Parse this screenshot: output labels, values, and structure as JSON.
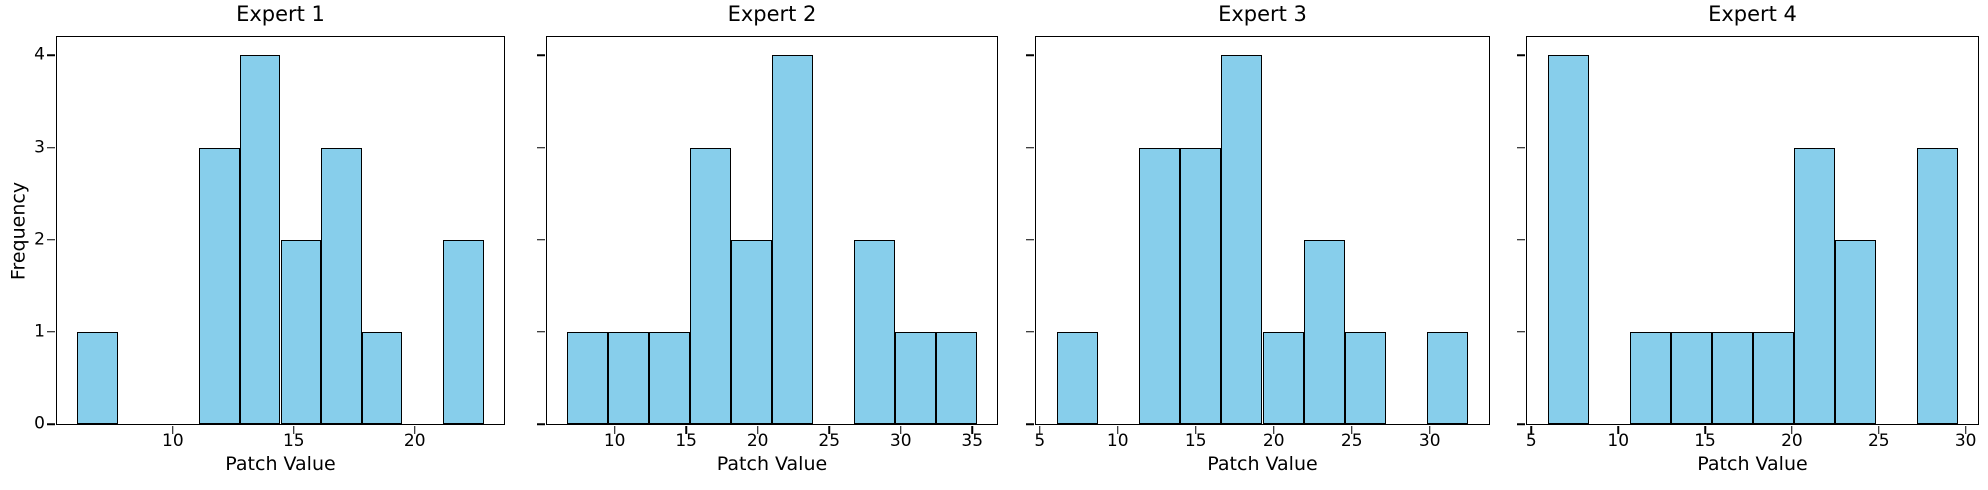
{
  "figure": {
    "background": "#ffffff",
    "bar_fill": "#87CEEB",
    "bar_edge": "#000000",
    "axis_color": "#000000",
    "frequency_axis_label": "Frequency",
    "value_axis_label": "Patch Value"
  },
  "chart_data": [
    {
      "type": "bar",
      "chart_kind": "histogram",
      "title": "Expert 1",
      "xlabel": "Patch Value",
      "ylabel": "Frequency",
      "bin_edges": [
        6.05,
        7.73,
        9.41,
        11.09,
        12.77,
        14.45,
        16.13,
        17.81,
        19.49,
        21.17,
        22.85
      ],
      "counts": [
        1,
        0,
        0,
        3,
        4,
        2,
        3,
        1,
        0,
        2
      ],
      "x_ticks": [
        10,
        15,
        20
      ],
      "y_ticks": [
        0,
        1,
        2,
        3,
        4
      ],
      "xlim": [
        5.21,
        23.69
      ],
      "ylim": [
        0,
        4.2
      ],
      "show_y_tick_labels": true,
      "grid": false,
      "legend": false
    },
    {
      "type": "bar",
      "chart_kind": "histogram",
      "title": "Expert 2",
      "xlabel": "Patch Value",
      "ylabel": "",
      "bin_edges": [
        6.7,
        9.56,
        12.42,
        15.28,
        18.14,
        21.0,
        23.86,
        26.72,
        29.58,
        32.44,
        35.3
      ],
      "counts": [
        1,
        1,
        1,
        3,
        2,
        4,
        0,
        2,
        1,
        1
      ],
      "x_ticks": [
        10,
        15,
        20,
        25,
        30,
        35
      ],
      "y_ticks": [
        0,
        1,
        2,
        3,
        4
      ],
      "xlim": [
        5.27,
        36.73
      ],
      "ylim": [
        0,
        4.2
      ],
      "show_y_tick_labels": false,
      "grid": false,
      "legend": false
    },
    {
      "type": "bar",
      "chart_kind": "histogram",
      "title": "Expert 3",
      "xlabel": "Patch Value",
      "ylabel": "",
      "bin_edges": [
        6.08,
        8.72,
        11.36,
        14.0,
        16.64,
        19.28,
        21.92,
        24.56,
        27.2,
        29.84,
        32.48
      ],
      "counts": [
        1,
        0,
        3,
        3,
        4,
        1,
        2,
        1,
        0,
        1
      ],
      "x_ticks": [
        5,
        10,
        15,
        20,
        25,
        30
      ],
      "y_ticks": [
        0,
        1,
        2,
        3,
        4
      ],
      "xlim": [
        4.76,
        33.8
      ],
      "ylim": [
        0,
        4.2
      ],
      "show_y_tick_labels": false,
      "grid": false,
      "legend": false
    },
    {
      "type": "bar",
      "chart_kind": "histogram",
      "title": "Expert 4",
      "xlabel": "Patch Value",
      "ylabel": "",
      "bin_edges": [
        5.93,
        8.29,
        10.65,
        13.01,
        15.37,
        17.73,
        20.09,
        22.45,
        24.81,
        27.17,
        29.53
      ],
      "counts": [
        4,
        0,
        1,
        1,
        1,
        1,
        3,
        2,
        0,
        3
      ],
      "x_ticks": [
        5,
        10,
        15,
        20,
        25,
        30
      ],
      "y_ticks": [
        0,
        1,
        2,
        3,
        4
      ],
      "xlim": [
        4.75,
        30.71
      ],
      "ylim": [
        0,
        4.2
      ],
      "show_y_tick_labels": false,
      "grid": false,
      "legend": false
    }
  ]
}
